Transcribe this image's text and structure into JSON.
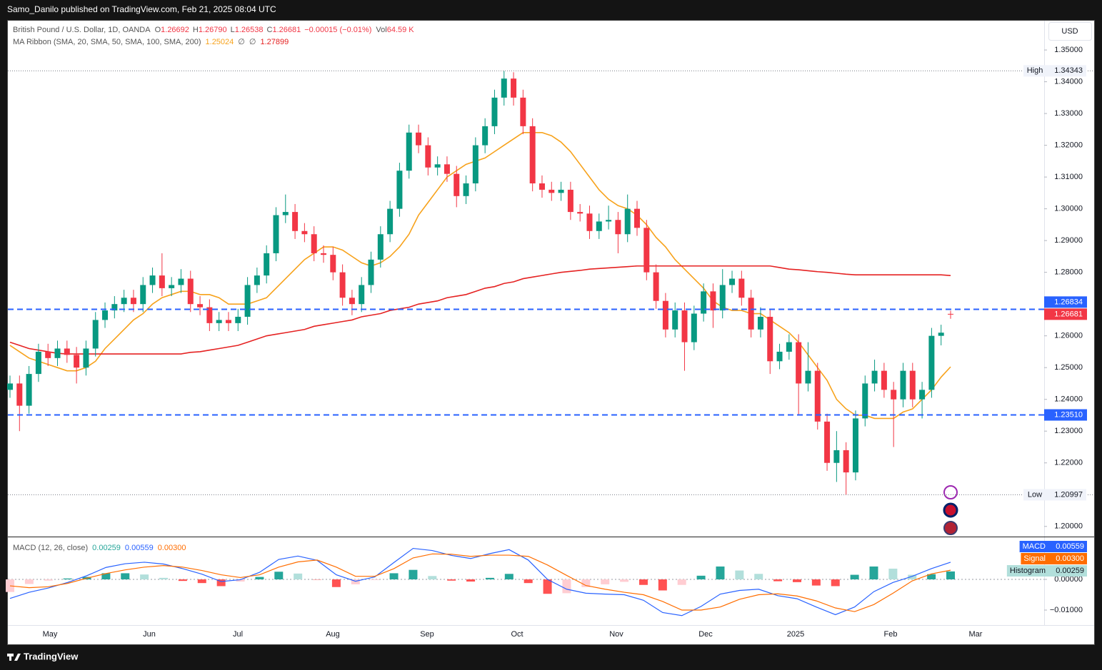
{
  "header": "Samo_Danilo published on TradingView.com, Feb 21, 2025 08:04 UTC",
  "currency_button": "USD",
  "footer": "TradingView",
  "chart_data": [
    {
      "type": "candlestick",
      "title": "British Pound / U.S. Dollar, 1D, OANDA",
      "ohlc": [
        {
          "name": "O",
          "text": "1.26692"
        },
        {
          "name": "H",
          "text": "1.26790"
        },
        {
          "name": "L",
          "text": "1.26538"
        },
        {
          "name": "C",
          "text": "1.26681"
        }
      ],
      "change": "−0.00015 (−0.01%)",
      "volume": {
        "name": "Vol",
        "text": "64.59 K"
      },
      "ma_title": "MA Ribbon (SMA, 20, SMA, 50, SMA, 100, SMA, 200)",
      "ma_empty": [
        "∅",
        "∅"
      ],
      "up_color": "#089981",
      "down_color": "#f23645",
      "ylim": [
        1.1968,
        1.359
      ],
      "yticks": [
        {
          "value": 1.35,
          "label": "1.35000"
        },
        {
          "value": 1.34,
          "label": "1.34000"
        },
        {
          "value": 1.33,
          "label": "1.33000"
        },
        {
          "value": 1.32,
          "label": "1.32000"
        },
        {
          "value": 1.31,
          "label": "1.31000"
        },
        {
          "value": 1.3,
          "label": "1.30000"
        },
        {
          "value": 1.29,
          "label": "1.29000"
        },
        {
          "value": 1.28,
          "label": "1.28000"
        },
        {
          "value": 1.27,
          "label": "1.27000"
        },
        {
          "value": 1.26,
          "label": "1.26000"
        },
        {
          "value": 1.25,
          "label": "1.25000"
        },
        {
          "value": 1.24,
          "label": "1.24000"
        },
        {
          "value": 1.23,
          "label": "1.23000"
        },
        {
          "value": 1.22,
          "label": "1.22000"
        },
        {
          "value": 1.21,
          "label": "1.21000"
        },
        {
          "value": 1.2,
          "label": "1.20000"
        }
      ],
      "time_labels": [
        "May",
        "Jun",
        "Jul",
        "Aug",
        "Sep",
        "Oct",
        "Nov",
        "Dec",
        "2025",
        "Feb",
        "Mar"
      ],
      "levels": [
        1.26834,
        {
          "value": 1.2351,
          "label": "1.23510"
        }
      ],
      "level_color": "#2962ff",
      "high": {
        "name": "High",
        "value": 1.34343
      },
      "low": {
        "name": "Low",
        "value": 1.20997
      },
      "candles": [
        [
          1.243,
          1.2475,
          1.2405,
          1.245
        ],
        [
          1.245,
          1.2475,
          1.23,
          1.238
        ],
        [
          1.238,
          1.2505,
          1.2355,
          1.248
        ],
        [
          1.248,
          1.2575,
          1.2455,
          1.255
        ],
        [
          1.255,
          1.2575,
          1.2505,
          1.253
        ],
        [
          1.253,
          1.2585,
          1.2505,
          1.256
        ],
        [
          1.256,
          1.2585,
          1.2515,
          1.254
        ],
        [
          1.254,
          1.2565,
          1.245,
          1.25
        ],
        [
          1.25,
          1.2585,
          1.2475,
          1.256
        ],
        [
          1.256,
          1.2675,
          1.2535,
          1.265
        ],
        [
          1.265,
          1.2705,
          1.2625,
          1.268
        ],
        [
          1.268,
          1.2725,
          1.2655,
          1.27
        ],
        [
          1.27,
          1.2745,
          1.2675,
          1.272
        ],
        [
          1.272,
          1.2745,
          1.2675,
          1.27
        ],
        [
          1.27,
          1.2785,
          1.2675,
          1.276
        ],
        [
          1.276,
          1.2815,
          1.2735,
          1.279
        ],
        [
          1.279,
          1.286,
          1.2725,
          1.275
        ],
        [
          1.275,
          1.2785,
          1.2725,
          1.276
        ],
        [
          1.276,
          1.281,
          1.2735,
          1.278
        ],
        [
          1.278,
          1.2805,
          1.2675,
          1.27
        ],
        [
          1.27,
          1.2725,
          1.2665,
          1.269
        ],
        [
          1.269,
          1.2715,
          1.2615,
          1.264
        ],
        [
          1.264,
          1.2675,
          1.2615,
          1.265
        ],
        [
          1.265,
          1.2675,
          1.2615,
          1.264
        ],
        [
          1.264,
          1.2685,
          1.2615,
          1.266
        ],
        [
          1.266,
          1.2785,
          1.2635,
          1.276
        ],
        [
          1.276,
          1.2815,
          1.2735,
          1.279
        ],
        [
          1.279,
          1.2885,
          1.2765,
          1.286
        ],
        [
          1.286,
          1.3005,
          1.2835,
          1.298
        ],
        [
          1.298,
          1.3045,
          1.2955,
          1.299
        ],
        [
          1.299,
          1.3015,
          1.2905,
          1.293
        ],
        [
          1.293,
          1.2955,
          1.2895,
          1.292
        ],
        [
          1.292,
          1.2945,
          1.2835,
          1.286
        ],
        [
          1.286,
          1.2885,
          1.283,
          1.2855
        ],
        [
          1.2855,
          1.288,
          1.2775,
          1.28
        ],
        [
          1.28,
          1.2825,
          1.2695,
          1.272
        ],
        [
          1.272,
          1.2745,
          1.2665,
          1.27
        ],
        [
          1.27,
          1.2785,
          1.2675,
          1.276
        ],
        [
          1.276,
          1.2865,
          1.2735,
          1.284
        ],
        [
          1.284,
          1.2945,
          1.2815,
          1.292
        ],
        [
          1.292,
          1.3025,
          1.2895,
          1.3
        ],
        [
          1.3,
          1.3145,
          1.2975,
          1.312
        ],
        [
          1.312,
          1.3265,
          1.3095,
          1.324
        ],
        [
          1.324,
          1.3265,
          1.3175,
          1.32
        ],
        [
          1.32,
          1.3225,
          1.3105,
          1.313
        ],
        [
          1.313,
          1.3165,
          1.3105,
          1.314
        ],
        [
          1.314,
          1.3165,
          1.3085,
          1.311
        ],
        [
          1.311,
          1.3135,
          1.3005,
          1.304
        ],
        [
          1.304,
          1.3105,
          1.3015,
          1.308
        ],
        [
          1.308,
          1.3225,
          1.3055,
          1.32
        ],
        [
          1.32,
          1.3285,
          1.3175,
          1.326
        ],
        [
          1.326,
          1.3375,
          1.3235,
          1.335
        ],
        [
          1.335,
          1.3434,
          1.3325,
          1.341
        ],
        [
          1.341,
          1.343,
          1.3325,
          1.335
        ],
        [
          1.335,
          1.3375,
          1.3235,
          1.326
        ],
        [
          1.326,
          1.3285,
          1.3055,
          1.308
        ],
        [
          1.308,
          1.3105,
          1.3035,
          1.306
        ],
        [
          1.306,
          1.3085,
          1.3025,
          1.305
        ],
        [
          1.305,
          1.3085,
          1.3025,
          1.306
        ],
        [
          1.306,
          1.3085,
          1.2965,
          1.299
        ],
        [
          1.299,
          1.3015,
          1.296,
          1.2985
        ],
        [
          1.2985,
          1.301,
          1.2905,
          1.293
        ],
        [
          1.293,
          1.2985,
          1.2905,
          1.296
        ],
        [
          1.296,
          1.301,
          1.2935,
          1.2965
        ],
        [
          1.2965,
          1.299,
          1.286,
          1.292
        ],
        [
          1.292,
          1.3045,
          1.2895,
          1.3
        ],
        [
          1.3,
          1.3025,
          1.2915,
          1.294
        ],
        [
          1.294,
          1.2965,
          1.2775,
          1.28
        ],
        [
          1.28,
          1.2825,
          1.2685,
          1.271
        ],
        [
          1.271,
          1.2735,
          1.2595,
          1.262
        ],
        [
          1.262,
          1.2705,
          1.2595,
          1.268
        ],
        [
          1.268,
          1.2705,
          1.249,
          1.258
        ],
        [
          1.258,
          1.2695,
          1.2555,
          1.267
        ],
        [
          1.267,
          1.2765,
          1.2645,
          1.274
        ],
        [
          1.274,
          1.2765,
          1.2625,
          1.268
        ],
        [
          1.268,
          1.281,
          1.2655,
          1.276
        ],
        [
          1.276,
          1.2805,
          1.2735,
          1.278
        ],
        [
          1.278,
          1.2805,
          1.2695,
          1.272
        ],
        [
          1.272,
          1.2745,
          1.2595,
          1.262
        ],
        [
          1.262,
          1.269,
          1.2595,
          1.266
        ],
        [
          1.266,
          1.2685,
          1.248,
          1.252
        ],
        [
          1.252,
          1.2575,
          1.2495,
          1.255
        ],
        [
          1.255,
          1.2605,
          1.2525,
          1.258
        ],
        [
          1.258,
          1.2605,
          1.235,
          1.245
        ],
        [
          1.245,
          1.258,
          1.2425,
          1.249
        ],
        [
          1.249,
          1.2515,
          1.2305,
          1.233
        ],
        [
          1.233,
          1.2355,
          1.2175,
          1.22
        ],
        [
          1.22,
          1.23,
          1.214,
          1.224
        ],
        [
          1.224,
          1.2265,
          1.21,
          1.217
        ],
        [
          1.217,
          1.2365,
          1.2145,
          1.234
        ],
        [
          1.234,
          1.2475,
          1.2315,
          1.245
        ],
        [
          1.245,
          1.2525,
          1.2425,
          1.249
        ],
        [
          1.249,
          1.2515,
          1.2405,
          1.243
        ],
        [
          1.243,
          1.2455,
          1.225,
          1.24
        ],
        [
          1.24,
          1.2515,
          1.2375,
          1.249
        ],
        [
          1.249,
          1.2515,
          1.2375,
          1.24
        ],
        [
          1.24,
          1.2455,
          1.234,
          1.243
        ],
        [
          1.243,
          1.2625,
          1.2405,
          1.26
        ],
        [
          1.26,
          1.2635,
          1.257,
          1.261
        ],
        [
          1.26692,
          1.2679,
          1.26538,
          1.26681
        ]
      ],
      "series": [
        {
          "color": "#f7a21b",
          "values": [
            1.257,
            1.255,
            1.253,
            1.252,
            1.251,
            1.25,
            1.249,
            1.249,
            1.25,
            1.252,
            1.256,
            1.259,
            1.262,
            1.265,
            1.267,
            1.27,
            1.272,
            1.273,
            1.274,
            1.274,
            1.273,
            1.273,
            1.272,
            1.27,
            1.27,
            1.27,
            1.271,
            1.272,
            1.275,
            1.278,
            1.281,
            1.284,
            1.286,
            1.288,
            1.288,
            1.287,
            1.285,
            1.283,
            1.282,
            1.283,
            1.285,
            1.288,
            1.292,
            1.298,
            1.302,
            1.306,
            1.31,
            1.312,
            1.314,
            1.315,
            1.316,
            1.318,
            1.32,
            1.322,
            1.324,
            1.324,
            1.324,
            1.323,
            1.321,
            1.318,
            1.314,
            1.31,
            1.306,
            1.303,
            1.301,
            1.3,
            1.298,
            1.295,
            1.291,
            1.288,
            1.284,
            1.281,
            1.278,
            1.275,
            1.271,
            1.269,
            1.268,
            1.268,
            1.267,
            1.267,
            1.265,
            1.263,
            1.261,
            1.258,
            1.254,
            1.25,
            1.246,
            1.24,
            1.237,
            1.235,
            1.235,
            1.234,
            1.234,
            1.234,
            1.236,
            1.237,
            1.24,
            1.243,
            1.247,
            1.25024
          ]
        },
        {
          "color": "#e52222",
          "values": [
            1.258,
            1.257,
            1.256,
            1.2555,
            1.255,
            1.2545,
            1.2543,
            1.2543,
            1.2543,
            1.2543,
            1.2543,
            1.2543,
            1.2543,
            1.2543,
            1.2543,
            1.2543,
            1.2543,
            1.2543,
            1.2543,
            1.2548,
            1.255,
            1.2555,
            1.256,
            1.2565,
            1.257,
            1.258,
            1.259,
            1.26,
            1.2605,
            1.261,
            1.2615,
            1.262,
            1.263,
            1.2635,
            1.264,
            1.2645,
            1.265,
            1.266,
            1.2665,
            1.267,
            1.268,
            1.2685,
            1.269,
            1.27,
            1.2705,
            1.271,
            1.272,
            1.2725,
            1.273,
            1.274,
            1.275,
            1.2755,
            1.2765,
            1.277,
            1.278,
            1.2785,
            1.279,
            1.2795,
            1.28,
            1.2803,
            1.2806,
            1.281,
            1.2812,
            1.2814,
            1.2816,
            1.2818,
            1.282,
            1.282,
            1.282,
            1.282,
            1.282,
            1.282,
            1.282,
            1.282,
            1.282,
            1.282,
            1.282,
            1.282,
            1.282,
            1.282,
            1.282,
            1.2815,
            1.281,
            1.2808,
            1.2805,
            1.2802,
            1.28,
            1.2797,
            1.2794,
            1.2792,
            1.2792,
            1.2792,
            1.2792,
            1.2792,
            1.2792,
            1.2792,
            1.2792,
            1.2792,
            1.2792,
            1.27899
          ]
        }
      ]
    },
    {
      "type": "macd",
      "title": "MACD (12, 26, close)",
      "ylim": [
        -0.01488,
        0.01349
      ],
      "yticks": [
        {
          "value": 0,
          "label": "0.00000"
        },
        {
          "value": -0.01,
          "label": "−0.01000"
        }
      ],
      "series": [
        {
          "name": "MACD",
          "color": "#2962ff",
          "values": [
            -0.0062,
            -0.0042,
            -0.0028,
            -0.001,
            0.0012,
            0.0039,
            0.0051,
            0.0056,
            0.005,
            0.0035,
            0.0017,
            -0.0007,
            -0.0001,
            0.0023,
            0.0065,
            0.0076,
            0.0062,
            0.0015,
            -0.0006,
            0.0008,
            0.0055,
            0.0101,
            0.0094,
            0.0078,
            0.0068,
            0.0084,
            0.0097,
            0.0063,
            0,
            -0.0032,
            -0.0045,
            -0.0048,
            -0.005,
            -0.0068,
            -0.0108,
            -0.0118,
            -0.0088,
            -0.0048,
            -0.0036,
            -0.0032,
            -0.0053,
            -0.0063,
            -0.009,
            -0.0115,
            -0.009,
            -0.004,
            -0.001,
            0.001,
            0.0035,
            0.00559
          ]
        },
        {
          "name": "Signal",
          "color": "#ff6d00",
          "legend_value": "0.00300",
          "values": [
            -0.0021,
            -0.0027,
            -0.0024,
            -0.0013,
            0.0004,
            0.0019,
            0.0031,
            0.004,
            0.0045,
            0.004,
            0.0029,
            0.0015,
            0.0006,
            0.0015,
            0.004,
            0.0057,
            0.0063,
            0.004,
            0.001,
            0.001,
            0.0035,
            0.007,
            0.0083,
            0.0082,
            0.0075,
            0.0079,
            0.0079,
            0.0075,
            0.0047,
            0.0013,
            -0.002,
            -0.0032,
            -0.0042,
            -0.005,
            -0.0072,
            -0.01,
            -0.01,
            -0.009,
            -0.0065,
            -0.005,
            -0.0047,
            -0.0054,
            -0.007,
            -0.0093,
            -0.0105,
            -0.0082,
            -0.0045,
            -0.0005,
            0.0018,
            0.003
          ]
        }
      ],
      "histogram": {
        "name": "Histogram",
        "colors": [
          "#26a69a",
          "#b2dfdb",
          "#ff5252",
          "#ffcdd2"
        ],
        "values": [
          -0.0041,
          -0.0015,
          -0.0004,
          0.0003,
          0.0008,
          0.002,
          0.002,
          0.0016,
          0.0005,
          -0.0005,
          -0.0012,
          -0.0022,
          -0.0007,
          0.0008,
          0.0025,
          0.0019,
          -0.0001,
          -0.0025,
          -0.0016,
          -0.0002,
          0.002,
          0.0031,
          0.0011,
          -0.0004,
          -0.0007,
          0.0005,
          0.0018,
          -0.0012,
          -0.0047,
          -0.0045,
          -0.0025,
          -0.0016,
          -0.0008,
          -0.0018,
          -0.0036,
          -0.0018,
          0.0012,
          0.0042,
          0.0029,
          0.0018,
          -0.0006,
          -0.0009,
          -0.002,
          -0.0022,
          0.0015,
          0.0042,
          0.0035,
          0.0015,
          0.0017,
          0.00259
        ]
      }
    }
  ]
}
